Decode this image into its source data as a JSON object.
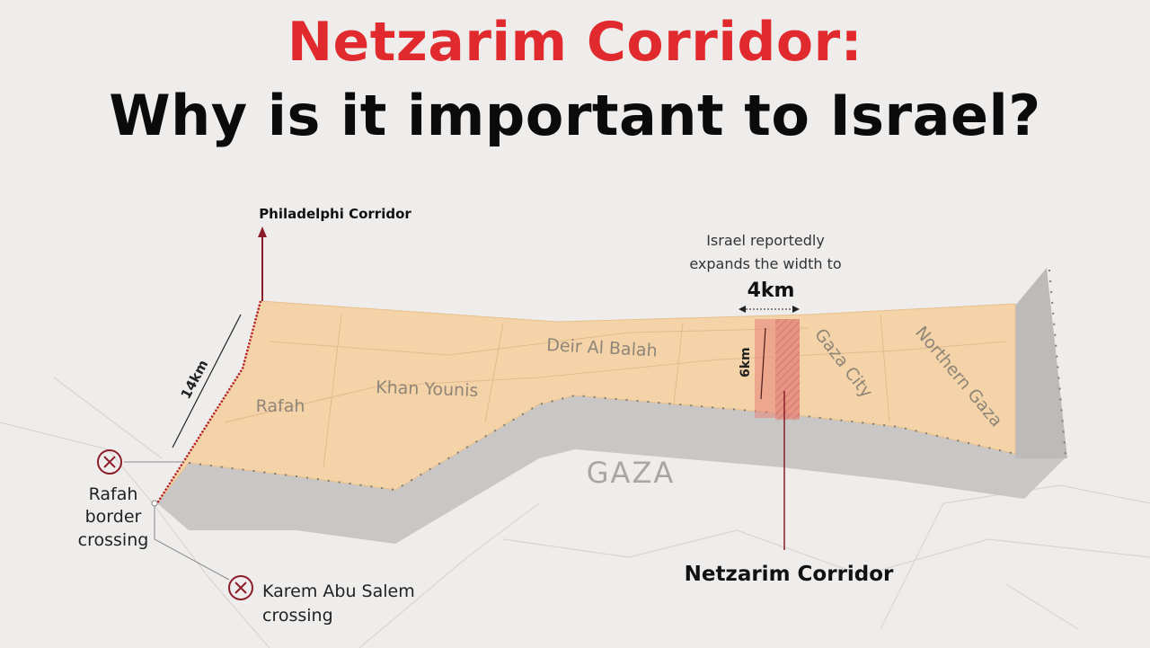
{
  "title": {
    "line1": "Netzarim Corridor:",
    "line2": "Why is it important to Israel?"
  },
  "colors": {
    "title_red": "#e02a2e",
    "strip_fill": "#f3d3a7",
    "corridor_red": "#e5837a",
    "marker": "#8b1c2a"
  },
  "map": {
    "region_label": "GAZA",
    "places": [
      "Rafah",
      "Khan Younis",
      "Deir Al Balah",
      "Gaza City",
      "Northern Gaza"
    ],
    "philadelphi_label": "Philadelphi Corridor",
    "netzarim_label": "Netzarim Corridor",
    "length_label": "14km",
    "corridor_height_label": "6km",
    "expansion_note_line1": "Israel reportedly",
    "expansion_note_line2": "expands the width to",
    "expansion_width": "4km",
    "crossings": [
      {
        "lines": [
          "Rafah",
          "border",
          "crossing"
        ],
        "status_icon": "closed-x-icon"
      },
      {
        "lines": [
          "Karem Abu Salem",
          "crossing"
        ],
        "status_icon": "closed-x-icon"
      }
    ]
  }
}
